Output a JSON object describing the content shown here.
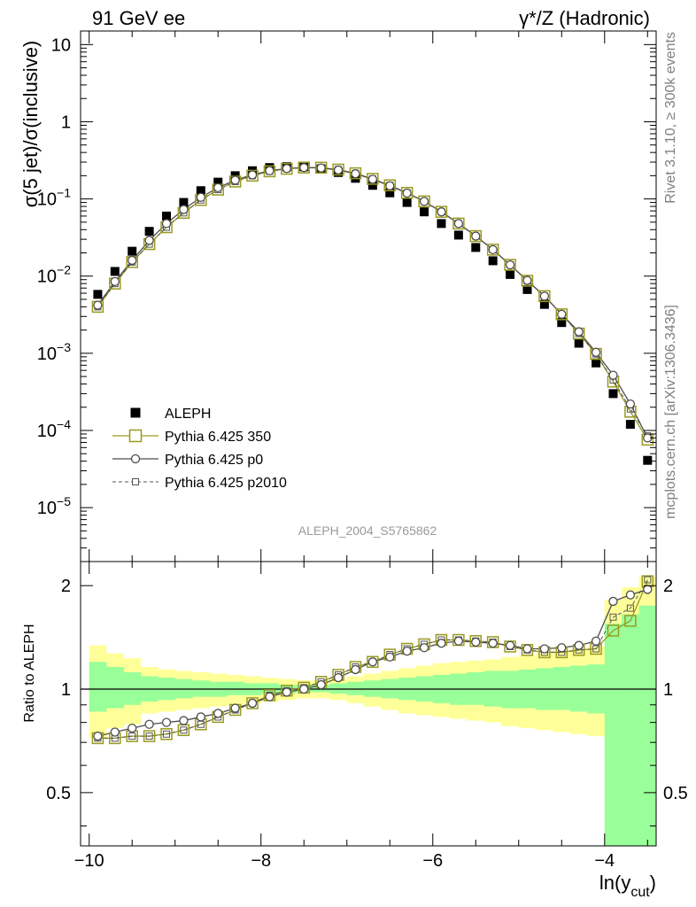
{
  "header": {
    "left": "91 GeV ee",
    "right": "γ*/Z (Hadronic)"
  },
  "side_labels": {
    "rivet": "Rivet 3.1.10, ≥ 300k events",
    "mcplots": "mcplots.cern.ch [arXiv:1306.3436]"
  },
  "watermark": "ALEPH_2004_S5765862",
  "colors": {
    "data": "#000000",
    "p350": "#9a9a1e",
    "p0": "#4d4d4d",
    "p2010": "#555555",
    "band_yellow": "#ffff99",
    "band_green": "#99ff99"
  },
  "chart_data": [
    {
      "type": "scatter",
      "ylabel": "σ(5 jet)/σ(inclusive)",
      "yscale": "log",
      "ylim": [
        2e-06,
        15
      ],
      "xlim": [
        -10.1,
        -3.4
      ],
      "y_ticks": [
        {
          "v": 1e-05,
          "base": "10",
          "exp": "−5"
        },
        {
          "v": 0.0001,
          "base": "10",
          "exp": "−4"
        },
        {
          "v": 0.001,
          "base": "10",
          "exp": "−3"
        },
        {
          "v": 0.01,
          "base": "10",
          "exp": "−2"
        },
        {
          "v": 0.1,
          "base": "10",
          "exp": "−1"
        },
        {
          "v": 1,
          "base": "1",
          "exp": ""
        },
        {
          "v": 10,
          "base": "10",
          "exp": ""
        }
      ],
      "x": [
        -9.9,
        -9.7,
        -9.5,
        -9.3,
        -9.1,
        -8.9,
        -8.7,
        -8.5,
        -8.3,
        -8.1,
        -7.9,
        -7.7,
        -7.5,
        -7.3,
        -7.1,
        -6.9,
        -6.7,
        -6.5,
        -6.3,
        -6.1,
        -5.9,
        -5.7,
        -5.5,
        -5.3,
        -5.1,
        -4.9,
        -4.7,
        -4.5,
        -4.3,
        -4.1,
        -3.9,
        -3.7,
        -3.5
      ],
      "legend": [
        {
          "label": "ALEPH",
          "marker": "filled-square"
        },
        {
          "label": "Pythia 6.425 350",
          "marker": "open-square"
        },
        {
          "label": "Pythia 6.425 p0",
          "marker": "open-circle"
        },
        {
          "label": "Pythia 6.425 p2010",
          "marker": "small-square-dashed"
        }
      ],
      "series": [
        {
          "name": "ALEPH",
          "values": [
            0.0058,
            0.0115,
            0.021,
            0.038,
            0.06,
            0.09,
            0.128,
            0.165,
            0.2,
            0.232,
            0.255,
            0.262,
            0.26,
            0.245,
            0.22,
            0.185,
            0.15,
            0.12,
            0.09,
            0.068,
            0.048,
            0.034,
            0.0235,
            0.0158,
            0.0105,
            0.0067,
            0.0043,
            0.0025,
            0.00135,
            0.00075,
            0.0003,
            0.00012,
            4.1e-05
          ]
        },
        {
          "name": "Pythia 6.425 350",
          "values": [
            0.004,
            0.008,
            0.0152,
            0.026,
            0.043,
            0.066,
            0.097,
            0.132,
            0.168,
            0.2,
            0.228,
            0.246,
            0.255,
            0.254,
            0.24,
            0.215,
            0.182,
            0.15,
            0.12,
            0.093,
            0.068,
            0.048,
            0.033,
            0.022,
            0.014,
            0.0087,
            0.0055,
            0.0032,
            0.0018,
            0.00098,
            0.00043,
            0.000175,
            7.6e-05
          ]
        },
        {
          "name": "Pythia 6.425 p0",
          "values": [
            0.0042,
            0.0085,
            0.016,
            0.029,
            0.048,
            0.073,
            0.105,
            0.14,
            0.175,
            0.205,
            0.232,
            0.248,
            0.255,
            0.252,
            0.237,
            0.212,
            0.18,
            0.148,
            0.119,
            0.093,
            0.068,
            0.048,
            0.033,
            0.022,
            0.014,
            0.0088,
            0.0055,
            0.0032,
            0.0019,
            0.00103,
            0.00052,
            0.00022,
            8e-05
          ]
        },
        {
          "name": "Pythia 6.425 p2010",
          "values": [
            0.004,
            0.008,
            0.0152,
            0.026,
            0.043,
            0.066,
            0.097,
            0.132,
            0.168,
            0.2,
            0.228,
            0.246,
            0.255,
            0.254,
            0.24,
            0.215,
            0.182,
            0.15,
            0.12,
            0.093,
            0.068,
            0.048,
            0.033,
            0.022,
            0.014,
            0.0087,
            0.0055,
            0.0032,
            0.0018,
            0.00098,
            0.00045,
            0.00019,
            8.5e-05
          ]
        }
      ]
    },
    {
      "type": "line",
      "ylabel": "Ratio to ALEPH",
      "xlabel": "ln(y",
      "xlabel_sub": "cut",
      "xlabel_close": ")",
      "yscale": "log",
      "ylim": [
        0.35,
        2.35
      ],
      "xlim": [
        -10.1,
        -3.4
      ],
      "y_ticks": [
        {
          "v": 0.5,
          "label": "0.5"
        },
        {
          "v": 1,
          "label": "1"
        },
        {
          "v": 2,
          "label": "2"
        }
      ],
      "x_ticks": [
        {
          "v": -10,
          "label": "−10"
        },
        {
          "v": -8,
          "label": "−8"
        },
        {
          "v": -6,
          "label": "−6"
        },
        {
          "v": -4,
          "label": "−4"
        }
      ],
      "x": [
        -9.9,
        -9.7,
        -9.5,
        -9.3,
        -9.1,
        -8.9,
        -8.7,
        -8.5,
        -8.3,
        -8.1,
        -7.9,
        -7.7,
        -7.5,
        -7.3,
        -7.1,
        -6.9,
        -6.7,
        -6.5,
        -6.3,
        -6.1,
        -5.9,
        -5.7,
        -5.5,
        -5.3,
        -5.1,
        -4.9,
        -4.7,
        -4.5,
        -4.3,
        -4.1,
        -3.9,
        -3.7,
        -3.5
      ],
      "band_edges": [
        -10.0,
        -9.8,
        -9.6,
        -9.4,
        -9.2,
        -9.0,
        -8.8,
        -8.6,
        -8.4,
        -8.2,
        -8.0,
        -7.8,
        -7.6,
        -7.4,
        -7.2,
        -7.0,
        -6.8,
        -6.6,
        -6.4,
        -6.2,
        -6.0,
        -5.8,
        -5.6,
        -5.4,
        -5.2,
        -5.0,
        -4.8,
        -4.6,
        -4.4,
        -4.2,
        -4.0,
        -3.8,
        -3.6,
        -3.4
      ],
      "band_yellow": {
        "low": [
          0.72,
          0.77,
          0.79,
          0.85,
          0.86,
          0.87,
          0.88,
          0.89,
          0.9,
          0.91,
          0.92,
          0.93,
          0.94,
          0.94,
          0.93,
          0.91,
          0.89,
          0.87,
          0.85,
          0.84,
          0.83,
          0.82,
          0.81,
          0.8,
          0.78,
          0.77,
          0.76,
          0.75,
          0.74,
          0.73,
          0.35,
          0.35,
          0.35
        ],
        "high": [
          1.34,
          1.27,
          1.23,
          1.16,
          1.14,
          1.13,
          1.12,
          1.11,
          1.1,
          1.09,
          1.08,
          1.07,
          1.06,
          1.06,
          1.07,
          1.09,
          1.11,
          1.13,
          1.15,
          1.17,
          1.19,
          1.2,
          1.21,
          1.22,
          1.24,
          1.25,
          1.27,
          1.29,
          1.31,
          1.33,
          1.82,
          1.98,
          2.12
        ]
      },
      "band_green": {
        "low": [
          0.86,
          0.88,
          0.9,
          0.92,
          0.93,
          0.94,
          0.95,
          0.95,
          0.96,
          0.96,
          0.97,
          0.97,
          0.98,
          0.98,
          0.97,
          0.96,
          0.95,
          0.94,
          0.93,
          0.92,
          0.91,
          0.9,
          0.9,
          0.89,
          0.88,
          0.88,
          0.87,
          0.87,
          0.86,
          0.85,
          0.35,
          0.35,
          0.35
        ],
        "high": [
          1.2,
          1.16,
          1.12,
          1.09,
          1.08,
          1.07,
          1.06,
          1.05,
          1.05,
          1.04,
          1.04,
          1.03,
          1.03,
          1.03,
          1.04,
          1.05,
          1.06,
          1.07,
          1.08,
          1.09,
          1.1,
          1.11,
          1.12,
          1.13,
          1.13,
          1.14,
          1.15,
          1.16,
          1.17,
          1.18,
          1.55,
          1.65,
          1.75
        ]
      },
      "series": [
        {
          "name": "Pythia 6.425 350",
          "values": [
            0.72,
            0.72,
            0.73,
            0.73,
            0.74,
            0.76,
            0.79,
            0.83,
            0.87,
            0.91,
            0.96,
            0.99,
            1.01,
            1.05,
            1.1,
            1.16,
            1.2,
            1.26,
            1.31,
            1.35,
            1.39,
            1.39,
            1.38,
            1.37,
            1.33,
            1.3,
            1.28,
            1.28,
            1.3,
            1.31,
            1.48,
            1.58,
            2.06
          ]
        },
        {
          "name": "Pythia 6.425 p0",
          "values": [
            0.73,
            0.75,
            0.77,
            0.79,
            0.8,
            0.81,
            0.83,
            0.85,
            0.88,
            0.91,
            0.95,
            0.98,
            1.0,
            1.03,
            1.08,
            1.14,
            1.2,
            1.24,
            1.29,
            1.32,
            1.36,
            1.38,
            1.37,
            1.36,
            1.34,
            1.31,
            1.31,
            1.32,
            1.34,
            1.38,
            1.8,
            1.88,
            1.95
          ]
        },
        {
          "name": "Pythia 6.425 p2010",
          "values": [
            0.72,
            0.72,
            0.73,
            0.73,
            0.74,
            0.76,
            0.79,
            0.83,
            0.87,
            0.91,
            0.96,
            0.99,
            1.01,
            1.05,
            1.1,
            1.16,
            1.2,
            1.26,
            1.31,
            1.35,
            1.39,
            1.39,
            1.38,
            1.37,
            1.33,
            1.3,
            1.28,
            1.28,
            1.3,
            1.31,
            1.62,
            1.72,
            2.08
          ]
        }
      ]
    }
  ]
}
